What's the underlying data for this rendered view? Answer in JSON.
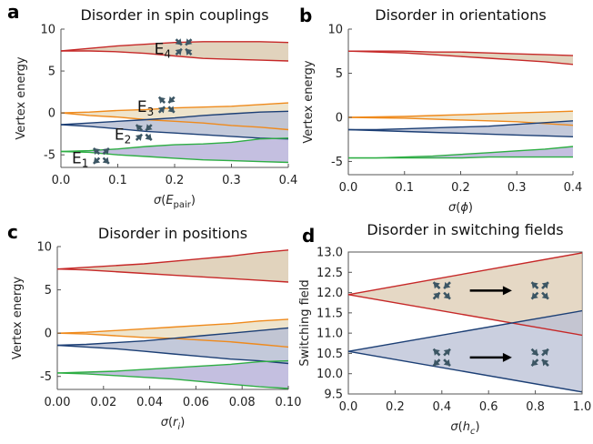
{
  "colors": {
    "red": "#c62828",
    "orange": "#ef8a1c",
    "navy": "#1c3f75",
    "green": "#2eae44",
    "red_fill": "#dccbb2",
    "orange_fill": "#ebdfc3",
    "navy_fill": "#b8bfd4",
    "green_fill": "#bab4da",
    "arrow": "#3c5664"
  },
  "chart_data": [
    {
      "panel": "a",
      "type": "area",
      "title": "Disorder in spin couplings",
      "xlabel": "σ(E_pair)",
      "ylabel": "Vertex energy",
      "xlim": [
        0,
        0.4
      ],
      "ylim": [
        -6.5,
        10
      ],
      "xticks": [
        0.0,
        0.1,
        0.2,
        0.3,
        0.4
      ],
      "xticklabels": [
        "0.0",
        "0.1",
        "0.2",
        "0.3",
        "0.4"
      ],
      "yticks": [
        -5,
        0,
        5,
        10
      ],
      "yticklabels": [
        "-5",
        "0",
        "5",
        "10"
      ],
      "x": [
        0,
        0.05,
        0.1,
        0.15,
        0.2,
        0.25,
        0.3,
        0.35,
        0.4
      ],
      "series": [
        {
          "name": "E4",
          "color": "red",
          "upper": [
            7.4,
            7.7,
            8.0,
            8.2,
            8.4,
            8.5,
            8.5,
            8.5,
            8.4
          ],
          "lower": [
            7.4,
            7.4,
            7.3,
            7.1,
            6.8,
            6.5,
            6.4,
            6.3,
            6.2
          ]
        },
        {
          "name": "E3",
          "color": "orange",
          "upper": [
            0.0,
            0.1,
            0.3,
            0.4,
            0.6,
            0.7,
            0.8,
            1.0,
            1.2
          ],
          "lower": [
            0.0,
            -0.3,
            -0.5,
            -0.8,
            -1.0,
            -1.2,
            -1.5,
            -1.7,
            -2.0
          ]
        },
        {
          "name": "E2",
          "color": "navy",
          "upper": [
            -1.4,
            -1.2,
            -1.0,
            -0.8,
            -0.6,
            -0.3,
            -0.1,
            0.1,
            0.2
          ],
          "lower": [
            -1.4,
            -1.6,
            -1.9,
            -2.2,
            -2.4,
            -2.6,
            -2.8,
            -3.0,
            -3.1
          ]
        },
        {
          "name": "E1",
          "color": "green",
          "upper": [
            -4.6,
            -4.5,
            -4.3,
            -4.0,
            -3.8,
            -3.7,
            -3.5,
            -3.1,
            -3.0
          ],
          "lower": [
            -4.6,
            -4.7,
            -5.0,
            -5.2,
            -5.4,
            -5.6,
            -5.7,
            -5.8,
            -5.9
          ]
        }
      ],
      "vertex_labels": [
        {
          "text": "E",
          "sub": "4",
          "x": 0.2,
          "y": 7.0
        },
        {
          "text": "E",
          "sub": "3",
          "x": 0.17,
          "y": 0.1
        },
        {
          "text": "E",
          "sub": "2",
          "x": 0.13,
          "y": -3.2
        },
        {
          "text": "E",
          "sub": "1",
          "x": 0.055,
          "y": -6.0
        }
      ]
    },
    {
      "panel": "b",
      "type": "area",
      "title": "Disorder in orientations",
      "xlabel": "σ(ϕ)",
      "ylabel": "Vertex energy",
      "xlim": [
        0,
        0.4
      ],
      "ylim": [
        -6.5,
        10
      ],
      "xticks": [
        0.0,
        0.1,
        0.2,
        0.3,
        0.4
      ],
      "xticklabels": [
        "0.0",
        "0.1",
        "0.2",
        "0.3",
        "0.4"
      ],
      "yticks": [
        -5,
        0,
        5,
        10
      ],
      "yticklabels": [
        "-5",
        "0",
        "5",
        "10"
      ],
      "x": [
        0,
        0.05,
        0.1,
        0.15,
        0.2,
        0.25,
        0.3,
        0.35,
        0.4
      ],
      "series": [
        {
          "name": "E4",
          "color": "red",
          "upper": [
            7.5,
            7.5,
            7.5,
            7.4,
            7.4,
            7.3,
            7.2,
            7.1,
            7.0
          ],
          "lower": [
            7.5,
            7.4,
            7.3,
            7.1,
            6.9,
            6.7,
            6.5,
            6.3,
            6.0
          ]
        },
        {
          "name": "E3",
          "color": "orange",
          "upper": [
            0.0,
            0.05,
            0.1,
            0.2,
            0.3,
            0.4,
            0.5,
            0.6,
            0.7
          ],
          "lower": [
            0.0,
            -0.05,
            -0.1,
            -0.2,
            -0.3,
            -0.4,
            -0.5,
            -0.7,
            -0.9
          ]
        },
        {
          "name": "E2",
          "color": "navy",
          "upper": [
            -1.4,
            -1.4,
            -1.3,
            -1.2,
            -1.1,
            -1.0,
            -0.8,
            -0.6,
            -0.4
          ],
          "lower": [
            -1.4,
            -1.5,
            -1.6,
            -1.7,
            -1.8,
            -1.9,
            -2.0,
            -2.1,
            -2.2
          ]
        },
        {
          "name": "E1",
          "color": "green",
          "upper": [
            -4.6,
            -4.6,
            -4.5,
            -4.4,
            -4.2,
            -4.0,
            -3.8,
            -3.6,
            -3.3
          ],
          "lower": [
            -4.6,
            -4.6,
            -4.6,
            -4.6,
            -4.6,
            -4.5,
            -4.5,
            -4.5,
            -4.5
          ]
        }
      ]
    },
    {
      "panel": "c",
      "type": "area",
      "title": "Disorder in positions",
      "xlabel": "σ(r_i)",
      "ylabel": "Vertex energy",
      "xlim": [
        0,
        0.1
      ],
      "ylim": [
        -6.5,
        10
      ],
      "xticks": [
        0.0,
        0.02,
        0.04,
        0.06,
        0.08,
        0.1
      ],
      "xticklabels": [
        "0.00",
        "0.02",
        "0.04",
        "0.06",
        "0.08",
        "0.10"
      ],
      "yticks": [
        -5,
        0,
        5,
        10
      ],
      "yticklabels": [
        "-5",
        "0",
        "5",
        "10"
      ],
      "x": [
        0,
        0.0125,
        0.025,
        0.0375,
        0.05,
        0.0625,
        0.075,
        0.0875,
        0.1
      ],
      "series": [
        {
          "name": "E4",
          "color": "red",
          "upper": [
            7.4,
            7.6,
            7.8,
            8.0,
            8.3,
            8.6,
            8.9,
            9.3,
            9.6
          ],
          "lower": [
            7.4,
            7.3,
            7.1,
            6.9,
            6.7,
            6.5,
            6.3,
            6.1,
            5.9
          ]
        },
        {
          "name": "E3",
          "color": "orange",
          "upper": [
            0.0,
            0.1,
            0.3,
            0.5,
            0.7,
            0.9,
            1.1,
            1.4,
            1.6
          ],
          "lower": [
            0.0,
            -0.1,
            -0.3,
            -0.5,
            -0.6,
            -0.8,
            -1.0,
            -1.3,
            -1.6
          ]
        },
        {
          "name": "E2",
          "color": "navy",
          "upper": [
            -1.4,
            -1.3,
            -1.1,
            -0.9,
            -0.6,
            -0.3,
            0.0,
            0.3,
            0.6
          ],
          "lower": [
            -1.4,
            -1.6,
            -1.8,
            -2.1,
            -2.4,
            -2.7,
            -3.0,
            -3.2,
            -3.5
          ]
        },
        {
          "name": "E1",
          "color": "green",
          "upper": [
            -4.6,
            -4.5,
            -4.4,
            -4.2,
            -4.0,
            -3.8,
            -3.6,
            -3.3,
            -3.2
          ],
          "lower": [
            -4.6,
            -4.7,
            -4.9,
            -5.1,
            -5.3,
            -5.6,
            -5.9,
            -6.2,
            -6.4
          ]
        }
      ]
    },
    {
      "panel": "d",
      "type": "area",
      "title": "Disorder in switching fields",
      "xlabel": "σ(h_c)",
      "ylabel": "Switching field",
      "xlim": [
        0,
        1
      ],
      "ylim": [
        9.5,
        13
      ],
      "xticks": [
        0.0,
        0.2,
        0.4,
        0.6,
        0.8,
        1.0
      ],
      "xticklabels": [
        "0.0",
        "0.2",
        "0.4",
        "0.6",
        "0.8",
        "1.0"
      ],
      "yticks": [
        9.5,
        10,
        10.5,
        11,
        11.5,
        12,
        12.5,
        13
      ],
      "yticklabels": [
        "9.5",
        "10.0",
        "10.5",
        "11.0",
        "11.5",
        "12.0",
        "12.5",
        "13.0"
      ],
      "x": [
        0,
        1
      ],
      "series": [
        {
          "color": "red",
          "upper": [
            11.95,
            12.98
          ],
          "lower": [
            11.95,
            10.95
          ]
        },
        {
          "color": "navy",
          "upper": [
            10.55,
            11.55
          ],
          "lower": [
            10.55,
            9.55
          ]
        }
      ]
    }
  ]
}
